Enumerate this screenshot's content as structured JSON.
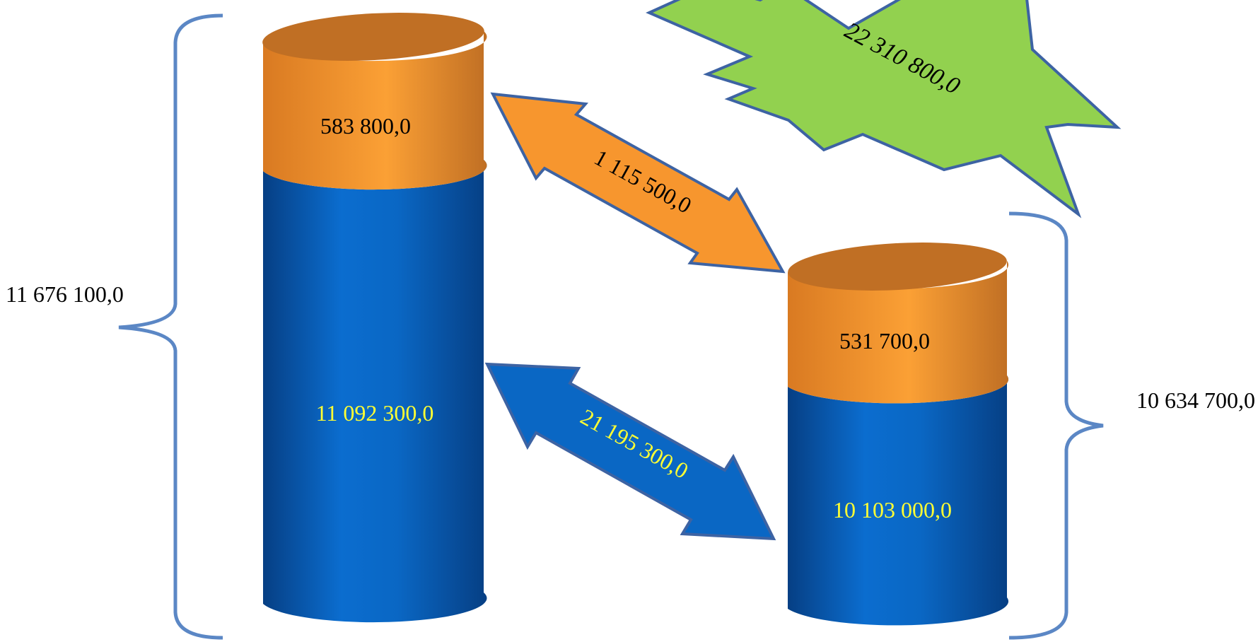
{
  "chart_data": {
    "type": "bar",
    "stacked": true,
    "style": "3d-cylinder",
    "series": [
      {
        "name": "",
        "color": "#0a67c4",
        "label_color": "#ffff33",
        "values": [
          11092300.0,
          10103000.0
        ]
      },
      {
        "name": "",
        "color": "#f7962e",
        "label_color": "#000000",
        "values": [
          583800.0,
          531700.0
        ]
      }
    ],
    "labels": {
      "bottom_left": "11 092 300,0",
      "top_left": "583 800,0",
      "bottom_right": "10 103 000,0",
      "top_right": "531 700,0",
      "total_left": "11 676 100,0",
      "total_right": "10 634 700,0",
      "sum_top": "1 115 500,0",
      "sum_bottom": "21 195 300,0",
      "grand_total": "22 310 800,0"
    },
    "colors": {
      "blue": "#0a67c4",
      "blue_dark": "#063f84",
      "orange": "#f7962e",
      "orange_dark": "#c06f24",
      "star_green": "#92d14f",
      "brace": "#5b87c5",
      "outline": "#3d63a3"
    }
  }
}
